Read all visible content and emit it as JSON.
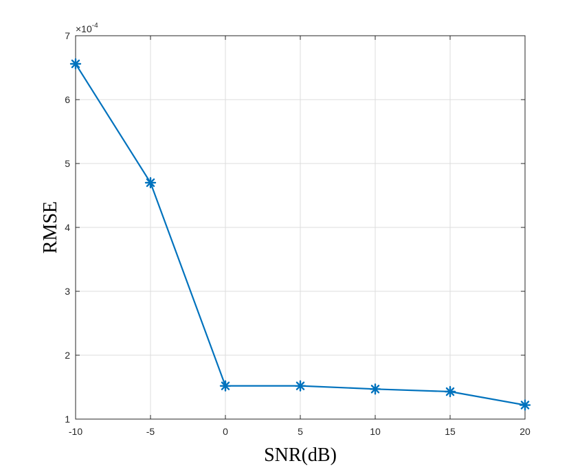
{
  "chart_data": {
    "type": "line",
    "xlabel": "SNR(dB)",
    "ylabel": "RMSE",
    "y_exponent_label": "×10",
    "y_exponent_power": "-4",
    "xlim": [
      -10,
      20
    ],
    "ylim": [
      1,
      7
    ],
    "x_ticks": [
      -10,
      -5,
      0,
      5,
      10,
      15,
      20
    ],
    "x_tick_labels": [
      "-10",
      "-5",
      "0",
      "5",
      "10",
      "15",
      "20"
    ],
    "y_ticks": [
      1,
      2,
      3,
      4,
      5,
      6,
      7
    ],
    "y_tick_labels": [
      "1",
      "2",
      "3",
      "4",
      "5",
      "6",
      "7"
    ],
    "grid": true,
    "series": [
      {
        "x": [
          -10,
          -5,
          0,
          5,
          10,
          15,
          20
        ],
        "y": [
          6.56,
          4.7,
          1.52,
          1.52,
          1.47,
          1.43,
          1.22
        ],
        "color": "#0072bd",
        "marker": "asterisk"
      }
    ]
  }
}
